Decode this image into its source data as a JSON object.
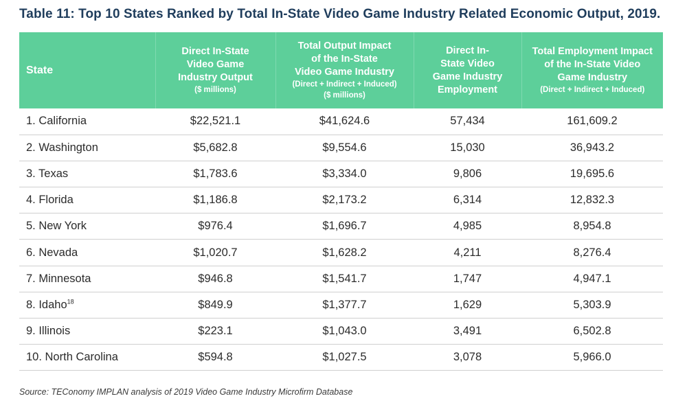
{
  "title": "Table 11: Top 10 States Ranked by Total In-State Video Game Industry Related Economic Output, 2019.",
  "headers": {
    "state": "State",
    "direct_output": [
      "Direct In-State",
      "Video Game",
      "Industry Output"
    ],
    "direct_output_sub": "($ millions)",
    "total_output": [
      "Total Output Impact",
      "of the In-State",
      "Video Game Industry"
    ],
    "total_output_sub": [
      "(Direct + Indirect + Induced)",
      "($ millions)"
    ],
    "direct_employment": [
      "Direct In-",
      "State Video",
      "Game Industry",
      "Employment"
    ],
    "total_employment": [
      "Total Employment Impact",
      "of the In-State Video",
      "Game Industry"
    ],
    "total_employment_sub": "(Direct + Indirect + Induced)"
  },
  "rows": [
    {
      "state": "1. California",
      "note": "",
      "direct_output": "$22,521.1",
      "total_output": "$41,624.6",
      "direct_employment": "57,434",
      "total_employment": "161,609.2"
    },
    {
      "state": "2. Washington",
      "note": "",
      "direct_output": "$5,682.8",
      "total_output": "$9,554.6",
      "direct_employment": "15,030",
      "total_employment": "36,943.2"
    },
    {
      "state": "3. Texas",
      "note": "",
      "direct_output": "$1,783.6",
      "total_output": "$3,334.0",
      "direct_employment": "9,806",
      "total_employment": "19,695.6"
    },
    {
      "state": "4. Florida",
      "note": "",
      "direct_output": "$1,186.8",
      "total_output": "$2,173.2",
      "direct_employment": "6,314",
      "total_employment": "12,832.3"
    },
    {
      "state": "5. New York",
      "note": "",
      "direct_output": "$976.4",
      "total_output": "$1,696.7",
      "direct_employment": "4,985",
      "total_employment": "8,954.8"
    },
    {
      "state": "6. Nevada",
      "note": "",
      "direct_output": "$1,020.7",
      "total_output": "$1,628.2",
      "direct_employment": "4,211",
      "total_employment": "8,276.4"
    },
    {
      "state": "7. Minnesota",
      "note": "",
      "direct_output": "$946.8",
      "total_output": "$1,541.7",
      "direct_employment": "1,747",
      "total_employment": "4,947.1"
    },
    {
      "state": "8. Idaho",
      "note": "18",
      "direct_output": "$849.9",
      "total_output": "$1,377.7",
      "direct_employment": "1,629",
      "total_employment": "5,303.9"
    },
    {
      "state": "9. Illinois",
      "note": "",
      "direct_output": "$223.1",
      "total_output": "$1,043.0",
      "direct_employment": "3,491",
      "total_employment": "6,502.8"
    },
    {
      "state": "10. North Carolina",
      "note": "",
      "direct_output": "$594.8",
      "total_output": "$1,027.5",
      "direct_employment": "3,078",
      "total_employment": "5,966.0"
    }
  ],
  "source": "Source: TEConomy IMPLAN analysis of 2019 Video Game Industry Microfirm Database",
  "colors": {
    "header_bg": "#5dcf9a",
    "title": "#1f3d5c"
  }
}
